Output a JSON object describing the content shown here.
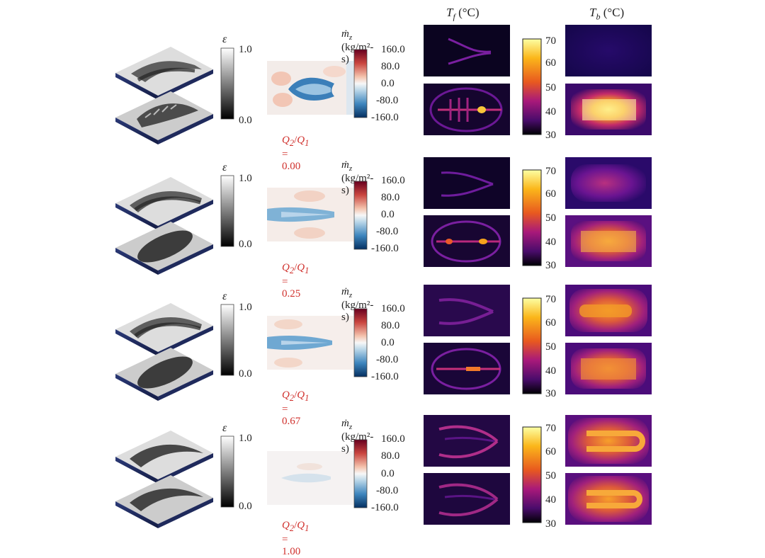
{
  "headers": {
    "tf_symbol": "T",
    "tf_sub": "f",
    "tf_unit": " (°C)",
    "tb_symbol": "T",
    "tb_sub": "b",
    "tb_unit": " (°C)"
  },
  "epsilon_bar": {
    "symbol": "ε",
    "max": "1.0",
    "min": "0.0"
  },
  "mass_flux_bar": {
    "symbol": "ṁ",
    "sub": "z",
    "unit": " (kg/m²-s)",
    "ticks": [
      "160.0",
      "80.0",
      "0.0",
      "-80.0",
      "-160.0"
    ]
  },
  "temp_bar": {
    "ticks": [
      "70",
      "60",
      "50",
      "40",
      "30"
    ]
  },
  "rows": [
    {
      "ratio_num": "Q",
      "ratio_num_sub": "2",
      "ratio_den": "Q",
      "ratio_den_sub": "1",
      "ratio_value": " = 0.00"
    },
    {
      "ratio_num": "Q",
      "ratio_num_sub": "2",
      "ratio_den": "Q",
      "ratio_den_sub": "1",
      "ratio_value": " = 0.25"
    },
    {
      "ratio_num": "Q",
      "ratio_num_sub": "2",
      "ratio_den": "Q",
      "ratio_den_sub": "1",
      "ratio_value": " = 0.67"
    },
    {
      "ratio_num": "Q",
      "ratio_num_sub": "2",
      "ratio_den": "Q",
      "ratio_den_sub": "1",
      "ratio_value": " = 1.00"
    }
  ],
  "colors": {
    "ratio_text": "#d0312d",
    "plate_base": "#1f2a5c",
    "massflux_pos": "#b2182b",
    "massflux_neg": "#2166ac"
  }
}
